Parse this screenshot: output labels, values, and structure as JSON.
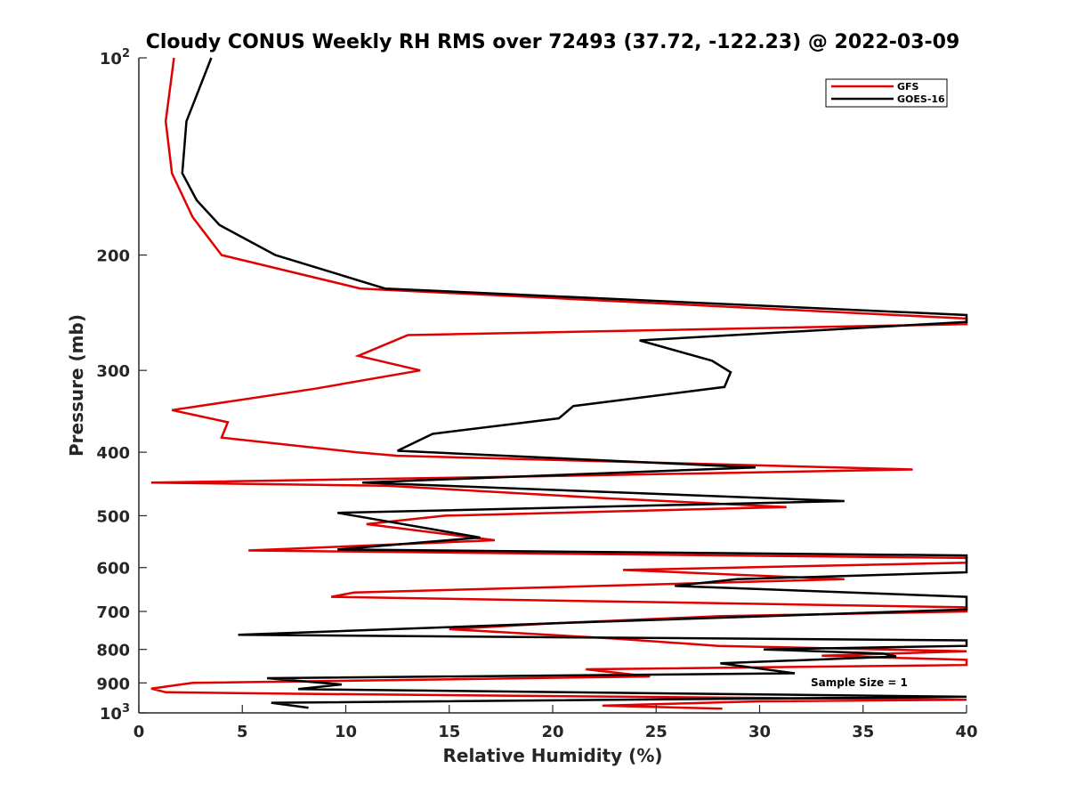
{
  "chart_data": {
    "type": "line",
    "title": "Cloudy CONUS Weekly RH RMS over 72493 (37.72, -122.23) @ 2022-03-09",
    "xlabel": "Relative Humidity (%)",
    "ylabel": "Pressure (mb)",
    "xlim": [
      0,
      40
    ],
    "ylim": [
      100,
      1000
    ],
    "y_scale": "log",
    "y_reversed": true,
    "grid": false,
    "legend_position": "top-right",
    "x_ticks": [
      "0",
      "5",
      "10",
      "15",
      "20",
      "25",
      "30",
      "35",
      "40"
    ],
    "x_tick_values": [
      0,
      5,
      10,
      15,
      20,
      25,
      30,
      35,
      40
    ],
    "y_ticks": [
      {
        "value": 100,
        "base": "10",
        "exp": "2"
      },
      {
        "value": 200,
        "label": "200"
      },
      {
        "value": 300,
        "label": "300"
      },
      {
        "value": 400,
        "label": "400"
      },
      {
        "value": 500,
        "label": "500"
      },
      {
        "value": 600,
        "label": "600"
      },
      {
        "value": 700,
        "label": "700"
      },
      {
        "value": 800,
        "label": "800"
      },
      {
        "value": 900,
        "label": "900"
      },
      {
        "value": 1000,
        "base": "10",
        "exp": "3"
      }
    ],
    "annotation": "Sample Size = 1",
    "series": [
      {
        "name": "GFS",
        "color": "#e00000",
        "points": [
          [
            1.7,
            100
          ],
          [
            1.3,
            125
          ],
          [
            1.6,
            150
          ],
          [
            2.6,
            175
          ],
          [
            4.0,
            200
          ],
          [
            10.7,
            225
          ],
          [
            40,
            250
          ],
          [
            40,
            255
          ],
          [
            13.0,
            265
          ],
          [
            10.6,
            285
          ],
          [
            13.6,
            300
          ],
          [
            8.5,
            320
          ],
          [
            1.6,
            345
          ],
          [
            4.3,
            360
          ],
          [
            4.0,
            380
          ],
          [
            10.5,
            400
          ],
          [
            12.5,
            405
          ],
          [
            37.4,
            425
          ],
          [
            20,
            435
          ],
          [
            0.6,
            445
          ],
          [
            12,
            450
          ],
          [
            22.5,
            470
          ],
          [
            31.3,
            485
          ],
          [
            14.8,
            500
          ],
          [
            11,
            515
          ],
          [
            17.2,
            545
          ],
          [
            5.3,
            565
          ],
          [
            40,
            580
          ],
          [
            40,
            590
          ],
          [
            23.4,
            605
          ],
          [
            34.1,
            625
          ],
          [
            10.4,
            655
          ],
          [
            9.3,
            665
          ],
          [
            40,
            690
          ],
          [
            40,
            700
          ],
          [
            28,
            712
          ],
          [
            20,
            730
          ],
          [
            15,
            745
          ],
          [
            23,
            770
          ],
          [
            28,
            790
          ],
          [
            40,
            805
          ],
          [
            33,
            818
          ],
          [
            40,
            830
          ],
          [
            40,
            845
          ],
          [
            21.6,
            858
          ],
          [
            24.7,
            880
          ],
          [
            2.6,
            900
          ],
          [
            0.6,
            918
          ],
          [
            1.3,
            930
          ],
          [
            7.6,
            935
          ],
          [
            40,
            955
          ],
          [
            30,
            960
          ],
          [
            22.4,
            975
          ],
          [
            28.2,
            985
          ]
        ]
      },
      {
        "name": "GOES-16",
        "color": "#000000",
        "points": [
          [
            3.5,
            100
          ],
          [
            2.3,
            125
          ],
          [
            2.1,
            150
          ],
          [
            2.8,
            165
          ],
          [
            3.9,
            180
          ],
          [
            6.6,
            200
          ],
          [
            11.9,
            225
          ],
          [
            40,
            247
          ],
          [
            40,
            253
          ],
          [
            24.2,
            270
          ],
          [
            27.7,
            290
          ],
          [
            28.6,
            302
          ],
          [
            28.3,
            318
          ],
          [
            21,
            340
          ],
          [
            20.3,
            355
          ],
          [
            14.2,
            375
          ],
          [
            12.5,
            398
          ],
          [
            29.8,
            422
          ],
          [
            10.8,
            445
          ],
          [
            34.1,
            475
          ],
          [
            9.6,
            495
          ],
          [
            12,
            510
          ],
          [
            16.5,
            540
          ],
          [
            9.6,
            563
          ],
          [
            40,
            575
          ],
          [
            40,
            585
          ],
          [
            40,
            610
          ],
          [
            28.9,
            625
          ],
          [
            25.9,
            640
          ],
          [
            40,
            665
          ],
          [
            40,
            695
          ],
          [
            20,
            730
          ],
          [
            4.8,
            760
          ],
          [
            40,
            775
          ],
          [
            40,
            790
          ],
          [
            30.2,
            800
          ],
          [
            36.0,
            812
          ],
          [
            36.6,
            820
          ],
          [
            28.1,
            840
          ],
          [
            31.7,
            870
          ],
          [
            6.2,
            885
          ],
          [
            9.8,
            905
          ],
          [
            7.7,
            920
          ],
          [
            40,
            945
          ],
          [
            6.4,
            965
          ],
          [
            8.2,
            982
          ]
        ]
      }
    ]
  }
}
